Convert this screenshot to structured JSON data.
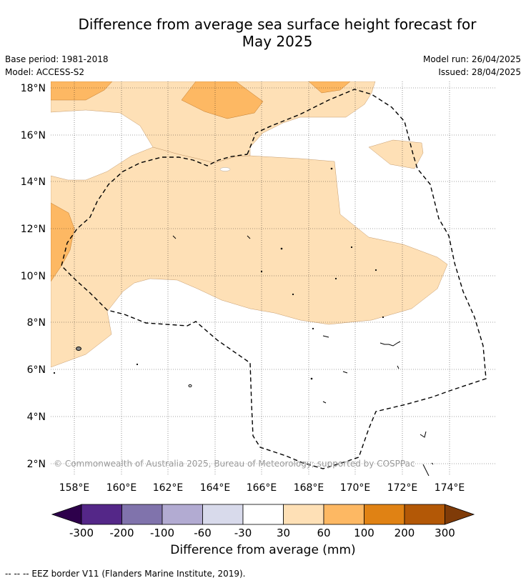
{
  "header": {
    "title_line1": "Difference from average sea surface height forecast for",
    "title_line2": "May 2025",
    "base_period": "Base period: 1981-2018",
    "model": "Model: ACCESS-S2",
    "model_run": "Model run: 26/04/2025",
    "issued": "Issued: 28/04/2025"
  },
  "map": {
    "lat_labels": [
      "18°N",
      "16°N",
      "14°N",
      "12°N",
      "10°N",
      "8°N",
      "6°N",
      "4°N",
      "2°N"
    ],
    "lon_labels": [
      "158°E",
      "160°E",
      "162°E",
      "164°E",
      "166°E",
      "168°E",
      "170°E",
      "172°E",
      "174°E"
    ],
    "copyright": "© Commonwealth of Australia 2025, Bureau of Meteorology; supported by COSPPac"
  },
  "colorbar": {
    "ticks": [
      "-300",
      "-200",
      "-100",
      "-60",
      "-30",
      "30",
      "60",
      "100",
      "200",
      "300"
    ],
    "colors": [
      "#2d004b",
      "#542788",
      "#8073ac",
      "#b2abd2",
      "#d8daeb",
      "#ffffff",
      "#fee0b6",
      "#fdb863",
      "#e08214",
      "#b35806",
      "#7f3b08"
    ],
    "label": "Difference from average (mm)"
  },
  "footer": {
    "legend": "--  --  -- EEZ border V11 (Flanders Marine Institute, 2019)."
  }
}
